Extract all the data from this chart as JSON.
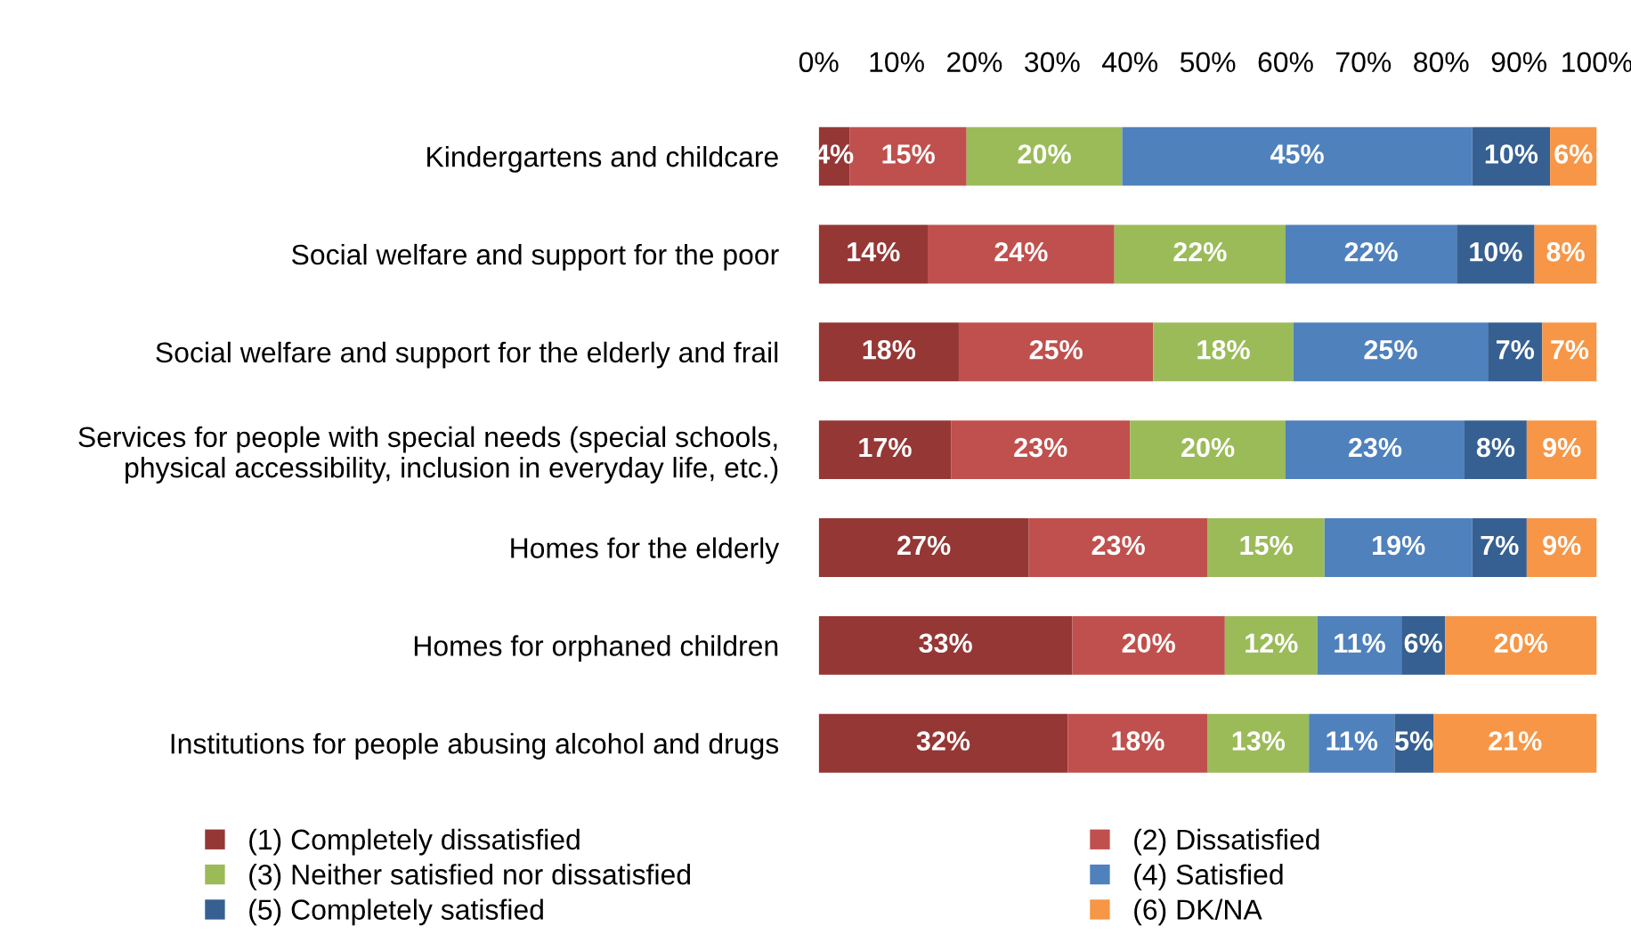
{
  "chart_data": {
    "type": "bar",
    "orientation": "horizontal",
    "stacked": true,
    "legend": "bottom",
    "grid": false,
    "categories": [
      "Kindergartens and childcare",
      "Social welfare and support for the poor",
      "Social welfare and support for the elderly and frail",
      "Services for people with special needs (special schools,\nphysical accessibility, inclusion in everyday life, etc.)",
      "Homes for the elderly",
      "Homes for orphaned children",
      "Institutions for people abusing alcohol and drugs"
    ],
    "xlim": [
      0,
      100
    ],
    "xticks": [
      {
        "value": 0,
        "label": "0%"
      },
      {
        "value": 10,
        "label": "10%"
      },
      {
        "value": 20,
        "label": "20%"
      },
      {
        "value": 30,
        "label": "30%"
      },
      {
        "value": 40,
        "label": "40%"
      },
      {
        "value": 50,
        "label": "50%"
      },
      {
        "value": 60,
        "label": "60%"
      },
      {
        "value": 70,
        "label": "70%"
      },
      {
        "value": 80,
        "label": "80%"
      },
      {
        "value": 90,
        "label": "90%"
      },
      {
        "value": 100,
        "label": "100%"
      }
    ],
    "series": [
      {
        "name": "(1) Completely dissatisfied",
        "color": "#953735",
        "values": [
          4,
          14,
          18,
          17,
          27,
          32.6,
          32
        ],
        "value_labels": [
          "4%",
          "14%",
          "18%",
          "17%",
          "27%",
          "33%",
          "32%"
        ]
      },
      {
        "name": "(2) Dissatisfied",
        "color": "#c0504d",
        "values": [
          15,
          24,
          25,
          23,
          23,
          19.6,
          18
        ],
        "value_labels": [
          "15%",
          "24%",
          "25%",
          "23%",
          "23%",
          "20%",
          "18%"
        ]
      },
      {
        "name": "(3) Neither satisfied nor dissatisfied",
        "color": "#9bbb59",
        "values": [
          20,
          22,
          18,
          20,
          15,
          11.9,
          13
        ],
        "value_labels": [
          "20%",
          "22%",
          "18%",
          "20%",
          "15%",
          "12%",
          "13%"
        ]
      },
      {
        "name": "(4) Satisfied",
        "color": "#4f81bd",
        "values": [
          45,
          22,
          25,
          23,
          19,
          10.8,
          11
        ],
        "value_labels": [
          "45%",
          "22%",
          "25%",
          "23%",
          "19%",
          "11%",
          "11%"
        ]
      },
      {
        "name": "(5) Completely satisfied",
        "color": "#366092",
        "values": [
          10,
          10,
          7,
          8,
          7,
          5.6,
          5
        ],
        "value_labels": [
          "10%",
          "10%",
          "7%",
          "8%",
          "7%",
          "6%",
          "5%"
        ]
      },
      {
        "name": "(6) DK/NA",
        "color": "#f79646",
        "values": [
          6,
          8,
          7,
          9,
          9,
          19.5,
          21
        ],
        "value_labels": [
          "6%",
          "8%",
          "7%",
          "9%",
          "9%",
          "20%",
          "21%"
        ]
      }
    ]
  }
}
